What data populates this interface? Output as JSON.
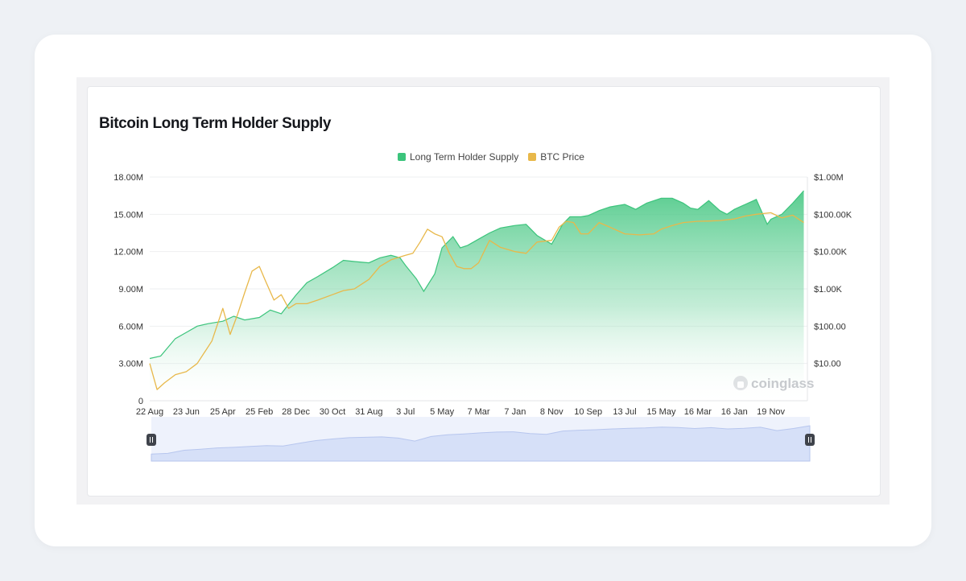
{
  "chart_data": {
    "type": "area",
    "title": "Bitcoin Long Term Holder Supply",
    "legend": {
      "position": "top-center",
      "items": [
        {
          "name": "Long Term Holder Supply",
          "color": "#3cc47c"
        },
        {
          "name": "BTC Price",
          "color": "#e8b84a"
        }
      ]
    },
    "x_ticks": [
      "22 Aug",
      "23 Jun",
      "25 Apr",
      "25 Feb",
      "28 Dec",
      "30 Oct",
      "31 Aug",
      "3 Jul",
      "5 May",
      "7 Mar",
      "7 Jan",
      "8 Nov",
      "10 Sep",
      "13 Jul",
      "15 May",
      "16 Mar",
      "16 Jan",
      "19 Nov"
    ],
    "y_left_ticks": [
      "0",
      "3.00M",
      "6.00M",
      "9.00M",
      "12.00M",
      "15.00M",
      "18.00M"
    ],
    "y_left_range": [
      0,
      18000000
    ],
    "y_right_ticks": [
      "$10.00",
      "$100.00",
      "$1.00K",
      "$10.00K",
      "$100.00K",
      "$1.00M"
    ],
    "y_right_scale": "log",
    "y_right_range": [
      1,
      1000000
    ],
    "grid": true,
    "watermark": "coinglass",
    "series": [
      {
        "name": "Long Term Holder Supply",
        "axis": "left",
        "color": "#3cc47c",
        "x": [
          0,
          0.3,
          0.7,
          1,
          1.3,
          1.6,
          2,
          2.3,
          2.6,
          3,
          3.3,
          3.6,
          4,
          4.3,
          4.6,
          5,
          5.3,
          5.6,
          6,
          6.3,
          6.6,
          6.85,
          7,
          7.3,
          7.5,
          7.8,
          8,
          8.3,
          8.5,
          8.7,
          9,
          9.3,
          9.6,
          10,
          10.3,
          10.6,
          11,
          11.3,
          11.5,
          11.8,
          12,
          12.3,
          12.6,
          13,
          13.3,
          13.6,
          14,
          14.3,
          14.6,
          14.8,
          15,
          15.3,
          15.6,
          15.8,
          16,
          16.3,
          16.6,
          16.9,
          17,
          17.3,
          17.6,
          17.9
        ],
        "values": [
          3.4,
          3.6,
          5.0,
          5.5,
          6.0,
          6.2,
          6.4,
          6.8,
          6.5,
          6.7,
          7.3,
          7.0,
          8.5,
          9.5,
          10.0,
          10.7,
          11.3,
          11.2,
          11.1,
          11.5,
          11.7,
          11.5,
          10.9,
          9.8,
          8.8,
          10.2,
          12.3,
          13.2,
          12.3,
          12.5,
          13.0,
          13.5,
          13.9,
          14.1,
          14.2,
          13.3,
          12.6,
          14.2,
          14.8,
          14.8,
          14.9,
          15.3,
          15.6,
          15.8,
          15.4,
          15.9,
          16.3,
          16.3,
          15.9,
          15.5,
          15.4,
          16.1,
          15.3,
          15.0,
          15.4,
          15.8,
          16.2,
          14.2,
          14.6,
          15.0,
          15.9,
          16.9
        ]
      },
      {
        "name": "BTC Price",
        "axis": "right",
        "color": "#e8b84a",
        "x": [
          0,
          0.2,
          0.4,
          0.7,
          1,
          1.3,
          1.7,
          2,
          2.2,
          2.4,
          2.6,
          2.8,
          3,
          3.15,
          3.4,
          3.6,
          3.8,
          4,
          4.3,
          4.6,
          5,
          5.3,
          5.6,
          6,
          6.3,
          6.6,
          7,
          7.2,
          7.4,
          7.6,
          7.8,
          8,
          8.2,
          8.4,
          8.6,
          8.8,
          9,
          9.3,
          9.6,
          10,
          10.3,
          10.6,
          11,
          11.2,
          11.4,
          11.6,
          11.8,
          12,
          12.3,
          12.6,
          13,
          13.4,
          13.8,
          14,
          14.3,
          14.6,
          15,
          15.3,
          15.6,
          16,
          16.3,
          16.6,
          17,
          17.3,
          17.6,
          17.9
        ],
        "values": [
          10,
          2,
          3,
          5,
          6,
          10,
          40,
          300,
          60,
          200,
          800,
          3000,
          4000,
          1800,
          500,
          700,
          300,
          400,
          400,
          500,
          700,
          900,
          1000,
          1800,
          4000,
          6000,
          8000,
          9000,
          18000,
          40000,
          30000,
          25000,
          9000,
          4000,
          3500,
          3500,
          5000,
          20000,
          13000,
          10000,
          9000,
          18000,
          20000,
          45000,
          65000,
          60000,
          30000,
          30000,
          60000,
          45000,
          30000,
          28000,
          30000,
          40000,
          50000,
          60000,
          65000,
          66000,
          68000,
          75000,
          90000,
          100000,
          110000,
          80000,
          95000,
          60000
        ]
      }
    ],
    "navigator": {
      "values": [
        3.4,
        3.7,
        5.2,
        5.7,
        6.3,
        6.6,
        7.0,
        7.4,
        7.2,
        8.6,
        9.8,
        10.6,
        11.2,
        11.4,
        11.6,
        11.0,
        9.6,
        11.8,
        12.6,
        13.0,
        13.5,
        13.9,
        14.0,
        13.2,
        12.8,
        14.4,
        14.8,
        15.0,
        15.4,
        15.7,
        15.9,
        16.3,
        16.1,
        15.6,
        16.0,
        15.4,
        15.7,
        16.2,
        14.6,
        15.6,
        16.9
      ]
    }
  }
}
